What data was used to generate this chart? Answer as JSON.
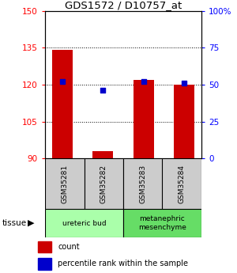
{
  "title": "GDS1572 / D10757_at",
  "samples": [
    "GSM35281",
    "GSM35282",
    "GSM35283",
    "GSM35284"
  ],
  "bar_values": [
    134,
    93,
    122,
    120
  ],
  "bar_bottom": 90,
  "percentile_values": [
    52,
    46,
    52,
    51
  ],
  "left_ylim": [
    90,
    150
  ],
  "right_ylim": [
    0,
    100
  ],
  "left_yticks": [
    90,
    105,
    120,
    135,
    150
  ],
  "right_yticks": [
    0,
    25,
    50,
    75,
    100
  ],
  "right_yticklabels": [
    "0",
    "25",
    "50",
    "75",
    "100%"
  ],
  "bar_color": "#cc0000",
  "dot_color": "#0000cc",
  "tissue_groups": [
    {
      "label": "ureteric bud",
      "samples": [
        0,
        1
      ],
      "color": "#aaffaa"
    },
    {
      "label": "metanephric\nmesenchyme",
      "samples": [
        2,
        3
      ],
      "color": "#66dd66"
    }
  ],
  "sample_box_color": "#cccccc",
  "legend_bar_label": "count",
  "legend_dot_label": "percentile rank within the sample",
  "tissue_label": "tissue",
  "figsize": [
    3.0,
    3.45
  ],
  "dpi": 100
}
